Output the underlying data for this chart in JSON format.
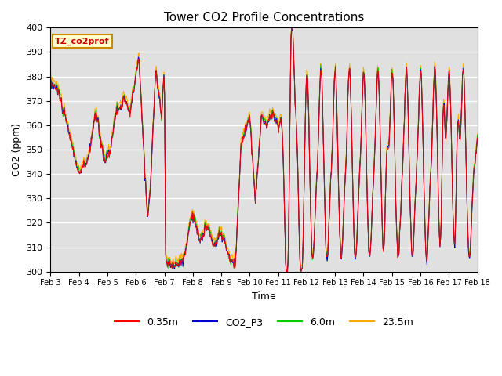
{
  "title": "Tower CO2 Profile Concentrations",
  "xlabel": "Time",
  "ylabel": "CO2 (ppm)",
  "ylim": [
    300,
    400
  ],
  "annotation": "TZ_co2prof",
  "legend_labels": [
    "0.35m",
    "CO2_P3",
    "6.0m",
    "23.5m"
  ],
  "legend_colors": [
    "#ff0000",
    "#0000cc",
    "#00cc00",
    "#ffaa00"
  ],
  "background_color": "#e0e0e0",
  "grid_color": "#ffffff",
  "xtick_labels": [
    "Feb 3",
    "Feb 4",
    "Feb 5",
    "Feb 6",
    "Feb 7",
    "Feb 8",
    "Feb 9",
    "Feb 10",
    "Feb 11",
    "Feb 12",
    "Feb 13",
    "Feb 14",
    "Feb 15",
    "Feb 16",
    "Feb 17",
    "Feb 18"
  ],
  "figsize": [
    6.4,
    4.8
  ],
  "dpi": 100
}
